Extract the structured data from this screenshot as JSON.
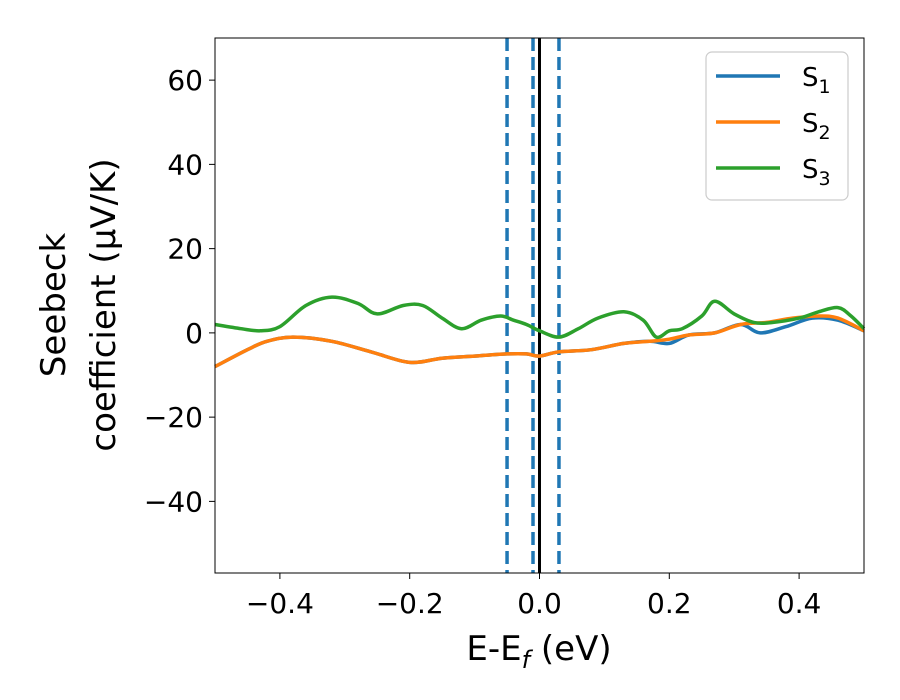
{
  "chart_data": {
    "type": "line",
    "title": "",
    "xlabel": {
      "main": "E-E",
      "sub": "f",
      "tail": " (eV)"
    },
    "ylabel": {
      "line1": "Seebeck",
      "line2": "coefficient  (μV/K)"
    },
    "xlim": [
      -0.5,
      0.5
    ],
    "ylim": [
      -57,
      70
    ],
    "xticks": [
      -0.4,
      -0.2,
      0.0,
      0.2,
      0.4
    ],
    "xtick_labels": [
      "−0.4",
      "−0.2",
      "0.0",
      "0.2",
      "0.4"
    ],
    "yticks": [
      -40,
      -20,
      0,
      20,
      40,
      60
    ],
    "ytick_labels": [
      "−40",
      "−20",
      "0",
      "20",
      "40",
      "60"
    ],
    "grid": false,
    "legend_position": "top-right",
    "vlines": [
      {
        "x": -0.05,
        "style": "dashed",
        "color": "#1f77b4"
      },
      {
        "x": -0.01,
        "style": "dashed",
        "color": "#1f77b4"
      },
      {
        "x": 0.0,
        "style": "solid",
        "color": "#000000"
      },
      {
        "x": 0.03,
        "style": "dashed",
        "color": "#1f77b4"
      }
    ],
    "series": [
      {
        "name": "S",
        "sub": "1",
        "color": "#1f77b4",
        "x": [
          -0.5,
          -0.45,
          -0.42,
          -0.38,
          -0.32,
          -0.26,
          -0.2,
          -0.15,
          -0.1,
          -0.05,
          -0.02,
          0.0,
          0.03,
          0.08,
          0.13,
          0.17,
          0.2,
          0.23,
          0.27,
          0.31,
          0.34,
          0.38,
          0.42,
          0.46,
          0.5
        ],
        "y": [
          -8,
          -4,
          -2,
          -1,
          -2,
          -4.5,
          -7,
          -6,
          -5.5,
          -5,
          -5,
          -5.5,
          -4.5,
          -4,
          -2.5,
          -2,
          -2.5,
          -0.5,
          0,
          2,
          0,
          1.5,
          3.5,
          3,
          0.5
        ]
      },
      {
        "name": "S",
        "sub": "2",
        "color": "#ff7f0e",
        "x": [
          -0.5,
          -0.45,
          -0.42,
          -0.38,
          -0.32,
          -0.26,
          -0.2,
          -0.15,
          -0.1,
          -0.05,
          -0.02,
          0.0,
          0.03,
          0.08,
          0.13,
          0.17,
          0.2,
          0.23,
          0.27,
          0.31,
          0.35,
          0.39,
          0.43,
          0.46,
          0.5
        ],
        "y": [
          -8,
          -4,
          -2,
          -1,
          -2,
          -4.5,
          -7,
          -6,
          -5.5,
          -5,
          -5,
          -5.5,
          -4.5,
          -4,
          -2.5,
          -2,
          -1.5,
          -0.5,
          0,
          2,
          2.5,
          3.5,
          4,
          3.5,
          0.5
        ]
      },
      {
        "name": "S",
        "sub": "3",
        "color": "#2ca02c",
        "x": [
          -0.5,
          -0.46,
          -0.43,
          -0.4,
          -0.36,
          -0.32,
          -0.28,
          -0.25,
          -0.21,
          -0.18,
          -0.15,
          -0.12,
          -0.09,
          -0.06,
          -0.04,
          -0.02,
          0.0,
          0.03,
          0.06,
          0.09,
          0.13,
          0.16,
          0.18,
          0.2,
          0.22,
          0.25,
          0.27,
          0.3,
          0.33,
          0.36,
          0.4,
          0.43,
          0.46,
          0.48,
          0.5
        ],
        "y": [
          2,
          1,
          0.5,
          1.5,
          6.5,
          8.5,
          7,
          4.5,
          6.5,
          6.5,
          3.5,
          1,
          3,
          4,
          3,
          2,
          0.5,
          -1,
          1,
          3.5,
          5,
          3,
          -1,
          0.5,
          1,
          4,
          7.5,
          4.5,
          2.5,
          2.5,
          3.5,
          5,
          6,
          4,
          1
        ]
      }
    ]
  }
}
